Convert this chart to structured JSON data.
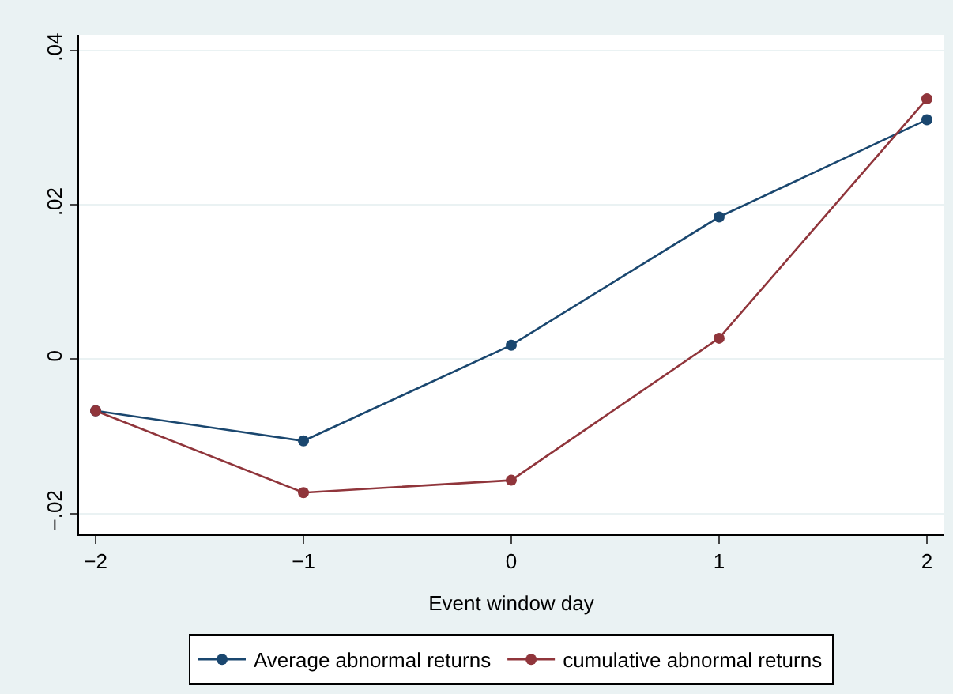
{
  "chart_data": {
    "type": "line",
    "xlabel": "Event window day",
    "x": [
      -2,
      -1,
      0,
      1,
      2
    ],
    "series": [
      {
        "name": "Average abnormal returns",
        "color": "#1a476f",
        "values": [
          -0.0067,
          -0.0106,
          0.0018,
          0.0184,
          0.031
        ]
      },
      {
        "name": "cumulative abnormal returns",
        "color": "#90353b",
        "values": [
          -0.0067,
          -0.0173,
          -0.0157,
          0.0027,
          0.0337
        ]
      }
    ],
    "xlim": [
      -2.08,
      2.08
    ],
    "ylim": [
      -0.0227,
      0.042
    ],
    "xticks": [
      {
        "value": -2,
        "label": "−2"
      },
      {
        "value": -1,
        "label": "−1"
      },
      0,
      1,
      2
    ],
    "yticks": [
      {
        "value": -0.02,
        "label": "−.02"
      },
      {
        "value": 0,
        "label": "0"
      },
      {
        "value": 0.02,
        "label": ".02"
      },
      {
        "value": 0.04,
        "label": ".04"
      }
    ],
    "grid": "y",
    "legend": "bottom",
    "marker": "circle",
    "line_style": "solid"
  }
}
